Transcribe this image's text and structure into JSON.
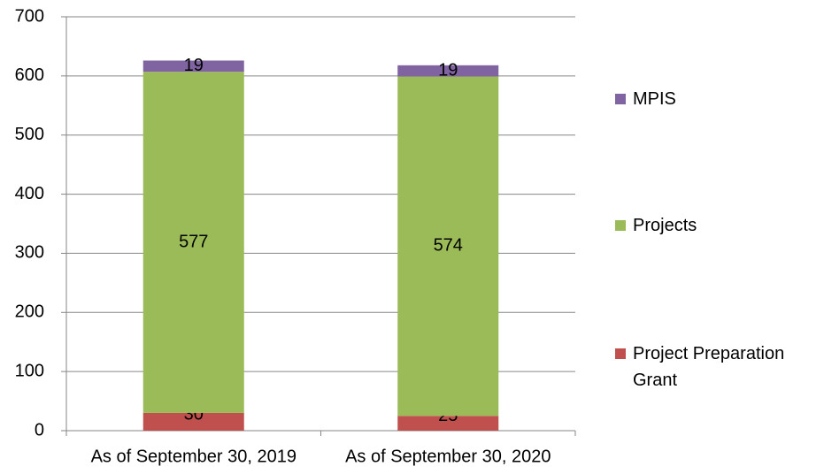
{
  "chart_data": {
    "type": "stacked_bar",
    "categories": [
      "As of September 30, 2019",
      "As of September 30, 2020"
    ],
    "series": [
      {
        "name": "Project Preparation Grant",
        "color": "#c0504d",
        "values": [
          30,
          25
        ]
      },
      {
        "name": "Projects",
        "color": "#9bbb59",
        "values": [
          577,
          574
        ]
      },
      {
        "name": "MPIS",
        "color": "#8064a2",
        "values": [
          19,
          19
        ]
      }
    ],
    "ylim": [
      0,
      700
    ],
    "yticks": [
      0,
      100,
      200,
      300,
      400,
      500,
      600,
      700
    ],
    "grid": true,
    "legend": "right"
  }
}
